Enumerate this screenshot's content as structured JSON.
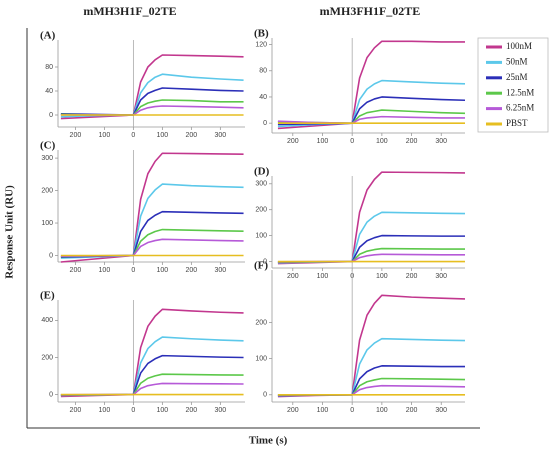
{
  "column_titles": [
    "mMH3H1F_02TE",
    "mMH3FH1F_02TE"
  ],
  "y_label": "Response Unit (RU)",
  "x_label": "Time (s)",
  "legend": [
    {
      "name": "100nM",
      "color": "#c2378e"
    },
    {
      "name": "50nM",
      "color": "#5cc8ea"
    },
    {
      "name": "25nM",
      "color": "#2b2fb8"
    },
    {
      "name": "12.5nM",
      "color": "#5cc84a"
    },
    {
      "name": "6.25nM",
      "color": "#b65ad8"
    },
    {
      "name": "PBST",
      "color": "#e6be20"
    }
  ],
  "chart_data": [
    {
      "type": "line",
      "title": "(A)",
      "x": [
        -250,
        -125,
        0,
        25,
        50,
        75,
        100,
        200,
        300,
        380
      ],
      "xlim": [
        -260,
        385
      ],
      "xticks": [
        {
          "value": -200,
          "label": "200"
        },
        {
          "value": -100,
          "label": "100"
        },
        0,
        100,
        200,
        300
      ],
      "ylim": [
        -20,
        125
      ],
      "yticks": [
        0,
        40,
        80
      ],
      "series": [
        {
          "values": [
            -6,
            -3,
            0,
            55,
            80,
            92,
            100,
            99,
            98,
            97
          ]
        },
        {
          "values": [
            -3,
            -1,
            0,
            37,
            54,
            63,
            68,
            63,
            60,
            58
          ]
        },
        {
          "values": [
            2,
            1,
            0,
            25,
            36,
            41,
            45,
            43,
            41,
            40
          ]
        },
        {
          "values": [
            1,
            0,
            0,
            14,
            20,
            23,
            25,
            24,
            22,
            22
          ]
        },
        {
          "values": [
            0,
            0,
            0,
            8,
            12,
            14,
            15,
            14,
            13,
            12
          ]
        },
        {
          "values": [
            0,
            0,
            0,
            0,
            0,
            0,
            0,
            0,
            0,
            0
          ]
        }
      ]
    },
    {
      "type": "line",
      "title": "(B)",
      "x": [
        -250,
        -125,
        0,
        25,
        50,
        75,
        100,
        200,
        300,
        380
      ],
      "xlim": [
        -270,
        380
      ],
      "xticks": [
        {
          "value": -200,
          "label": "200"
        },
        {
          "value": -100,
          "label": "100"
        },
        0,
        100,
        200,
        300
      ],
      "ylim": [
        -15,
        130
      ],
      "yticks": [
        0,
        40,
        80,
        120
      ],
      "series": [
        {
          "values": [
            -8,
            -4,
            0,
            69,
            100,
            115,
            125,
            125,
            124,
            124
          ]
        },
        {
          "values": [
            -5,
            -2,
            0,
            36,
            52,
            60,
            65,
            63,
            61,
            60
          ]
        },
        {
          "values": [
            -2,
            -1,
            0,
            22,
            32,
            37,
            40,
            38,
            36,
            35
          ]
        },
        {
          "values": [
            2,
            1,
            0,
            11,
            16,
            18,
            20,
            18,
            16,
            15
          ]
        },
        {
          "values": [
            3,
            1,
            0,
            6,
            8,
            9,
            10,
            9,
            8,
            8
          ]
        },
        {
          "values": [
            0,
            0,
            0,
            0,
            0,
            0,
            0,
            0,
            0,
            0
          ]
        }
      ]
    },
    {
      "type": "line",
      "title": "(C)",
      "x": [
        -250,
        -125,
        0,
        25,
        50,
        75,
        100,
        200,
        300,
        380
      ],
      "xlim": [
        -260,
        385
      ],
      "xticks": [
        {
          "value": -200,
          "label": "200"
        },
        {
          "value": -100,
          "label": "100"
        },
        0,
        100,
        200,
        300
      ],
      "ylim": [
        -20,
        325
      ],
      "yticks": [
        0,
        100,
        200,
        300
      ],
      "series": [
        {
          "values": [
            -20,
            -10,
            0,
            173,
            252,
            290,
            315,
            314,
            313,
            312
          ]
        },
        {
          "values": [
            -8,
            -4,
            0,
            121,
            176,
            202,
            220,
            215,
            212,
            210
          ]
        },
        {
          "values": [
            -5,
            -2,
            0,
            74,
            108,
            124,
            135,
            133,
            131,
            130
          ]
        },
        {
          "values": [
            -3,
            -1,
            0,
            44,
            64,
            74,
            80,
            78,
            76,
            75
          ]
        },
        {
          "values": [
            -2,
            -1,
            0,
            28,
            40,
            46,
            50,
            48,
            46,
            45
          ]
        },
        {
          "values": [
            0,
            0,
            0,
            0,
            0,
            0,
            0,
            0,
            0,
            0
          ]
        }
      ]
    },
    {
      "type": "line",
      "title": "(D)",
      "x": [
        -250,
        -125,
        0,
        25,
        50,
        75,
        100,
        200,
        300,
        380
      ],
      "xlim": [
        -270,
        380
      ],
      "xticks": [
        {
          "value": -200,
          "label": "200"
        },
        {
          "value": -100,
          "label": "100"
        },
        0,
        100,
        200,
        300
      ],
      "ylim": [
        -25,
        330
      ],
      "yticks": [
        0,
        100,
        200,
        300
      ],
      "series": [
        {
          "values": [
            -8,
            -4,
            0,
            190,
            276,
            317,
            345,
            344,
            343,
            342
          ]
        },
        {
          "values": [
            -5,
            -2,
            0,
            105,
            152,
            175,
            190,
            188,
            186,
            185
          ]
        },
        {
          "values": [
            -3,
            -1,
            0,
            55,
            80,
            92,
            100,
            99,
            98,
            98
          ]
        },
        {
          "values": [
            -2,
            -1,
            0,
            28,
            40,
            46,
            50,
            49,
            48,
            48
          ]
        },
        {
          "values": [
            -1,
            0,
            0,
            15,
            22,
            26,
            28,
            27,
            26,
            26
          ]
        },
        {
          "values": [
            0,
            0,
            0,
            0,
            0,
            0,
            0,
            0,
            0,
            0
          ]
        }
      ]
    },
    {
      "type": "line",
      "title": "(E)",
      "x": [
        -250,
        -125,
        0,
        25,
        50,
        75,
        100,
        200,
        300,
        380
      ],
      "xlim": [
        -260,
        385
      ],
      "xticks": [
        {
          "value": -200,
          "label": "200"
        },
        {
          "value": -100,
          "label": "100"
        },
        0,
        100,
        200,
        300
      ],
      "ylim": [
        -40,
        510
      ],
      "yticks": [
        0,
        200,
        400
      ],
      "series": [
        {
          "values": [
            -10,
            -5,
            0,
            253,
            368,
            423,
            460,
            451,
            444,
            440
          ]
        },
        {
          "values": [
            -5,
            -2,
            0,
            171,
            248,
            285,
            310,
            301,
            294,
            290
          ]
        },
        {
          "values": [
            -3,
            -1,
            0,
            116,
            168,
            193,
            210,
            206,
            202,
            200
          ]
        },
        {
          "values": [
            -2,
            -1,
            0,
            61,
            88,
            101,
            110,
            108,
            106,
            105
          ]
        },
        {
          "values": [
            -1,
            0,
            0,
            33,
            48,
            55,
            60,
            59,
            58,
            57
          ]
        },
        {
          "values": [
            0,
            0,
            0,
            0,
            0,
            0,
            0,
            0,
            0,
            0
          ]
        }
      ]
    },
    {
      "type": "line",
      "title": "(F)",
      "x": [
        -250,
        -125,
        0,
        25,
        50,
        75,
        100,
        200,
        300,
        380
      ],
      "xlim": [
        -270,
        380
      ],
      "xticks": [
        {
          "value": -200,
          "label": "200"
        },
        {
          "value": -100,
          "label": "100"
        },
        0,
        100,
        200,
        300
      ],
      "ylim": [
        -20,
        345
      ],
      "yticks": [
        0,
        100,
        200
      ],
      "series": [
        {
          "values": [
            -5,
            -2,
            0,
            151,
            220,
            253,
            275,
            270,
            267,
            265
          ]
        },
        {
          "values": [
            -3,
            -1,
            0,
            85,
            124,
            143,
            155,
            153,
            151,
            150
          ]
        },
        {
          "values": [
            -2,
            -1,
            0,
            44,
            64,
            74,
            80,
            79,
            78,
            78
          ]
        },
        {
          "values": [
            -1,
            0,
            0,
            25,
            36,
            41,
            45,
            44,
            43,
            42
          ]
        },
        {
          "values": [
            0,
            0,
            0,
            14,
            20,
            23,
            25,
            24,
            23,
            22
          ]
        },
        {
          "values": [
            0,
            0,
            0,
            0,
            0,
            0,
            0,
            0,
            0,
            0
          ]
        }
      ]
    }
  ]
}
